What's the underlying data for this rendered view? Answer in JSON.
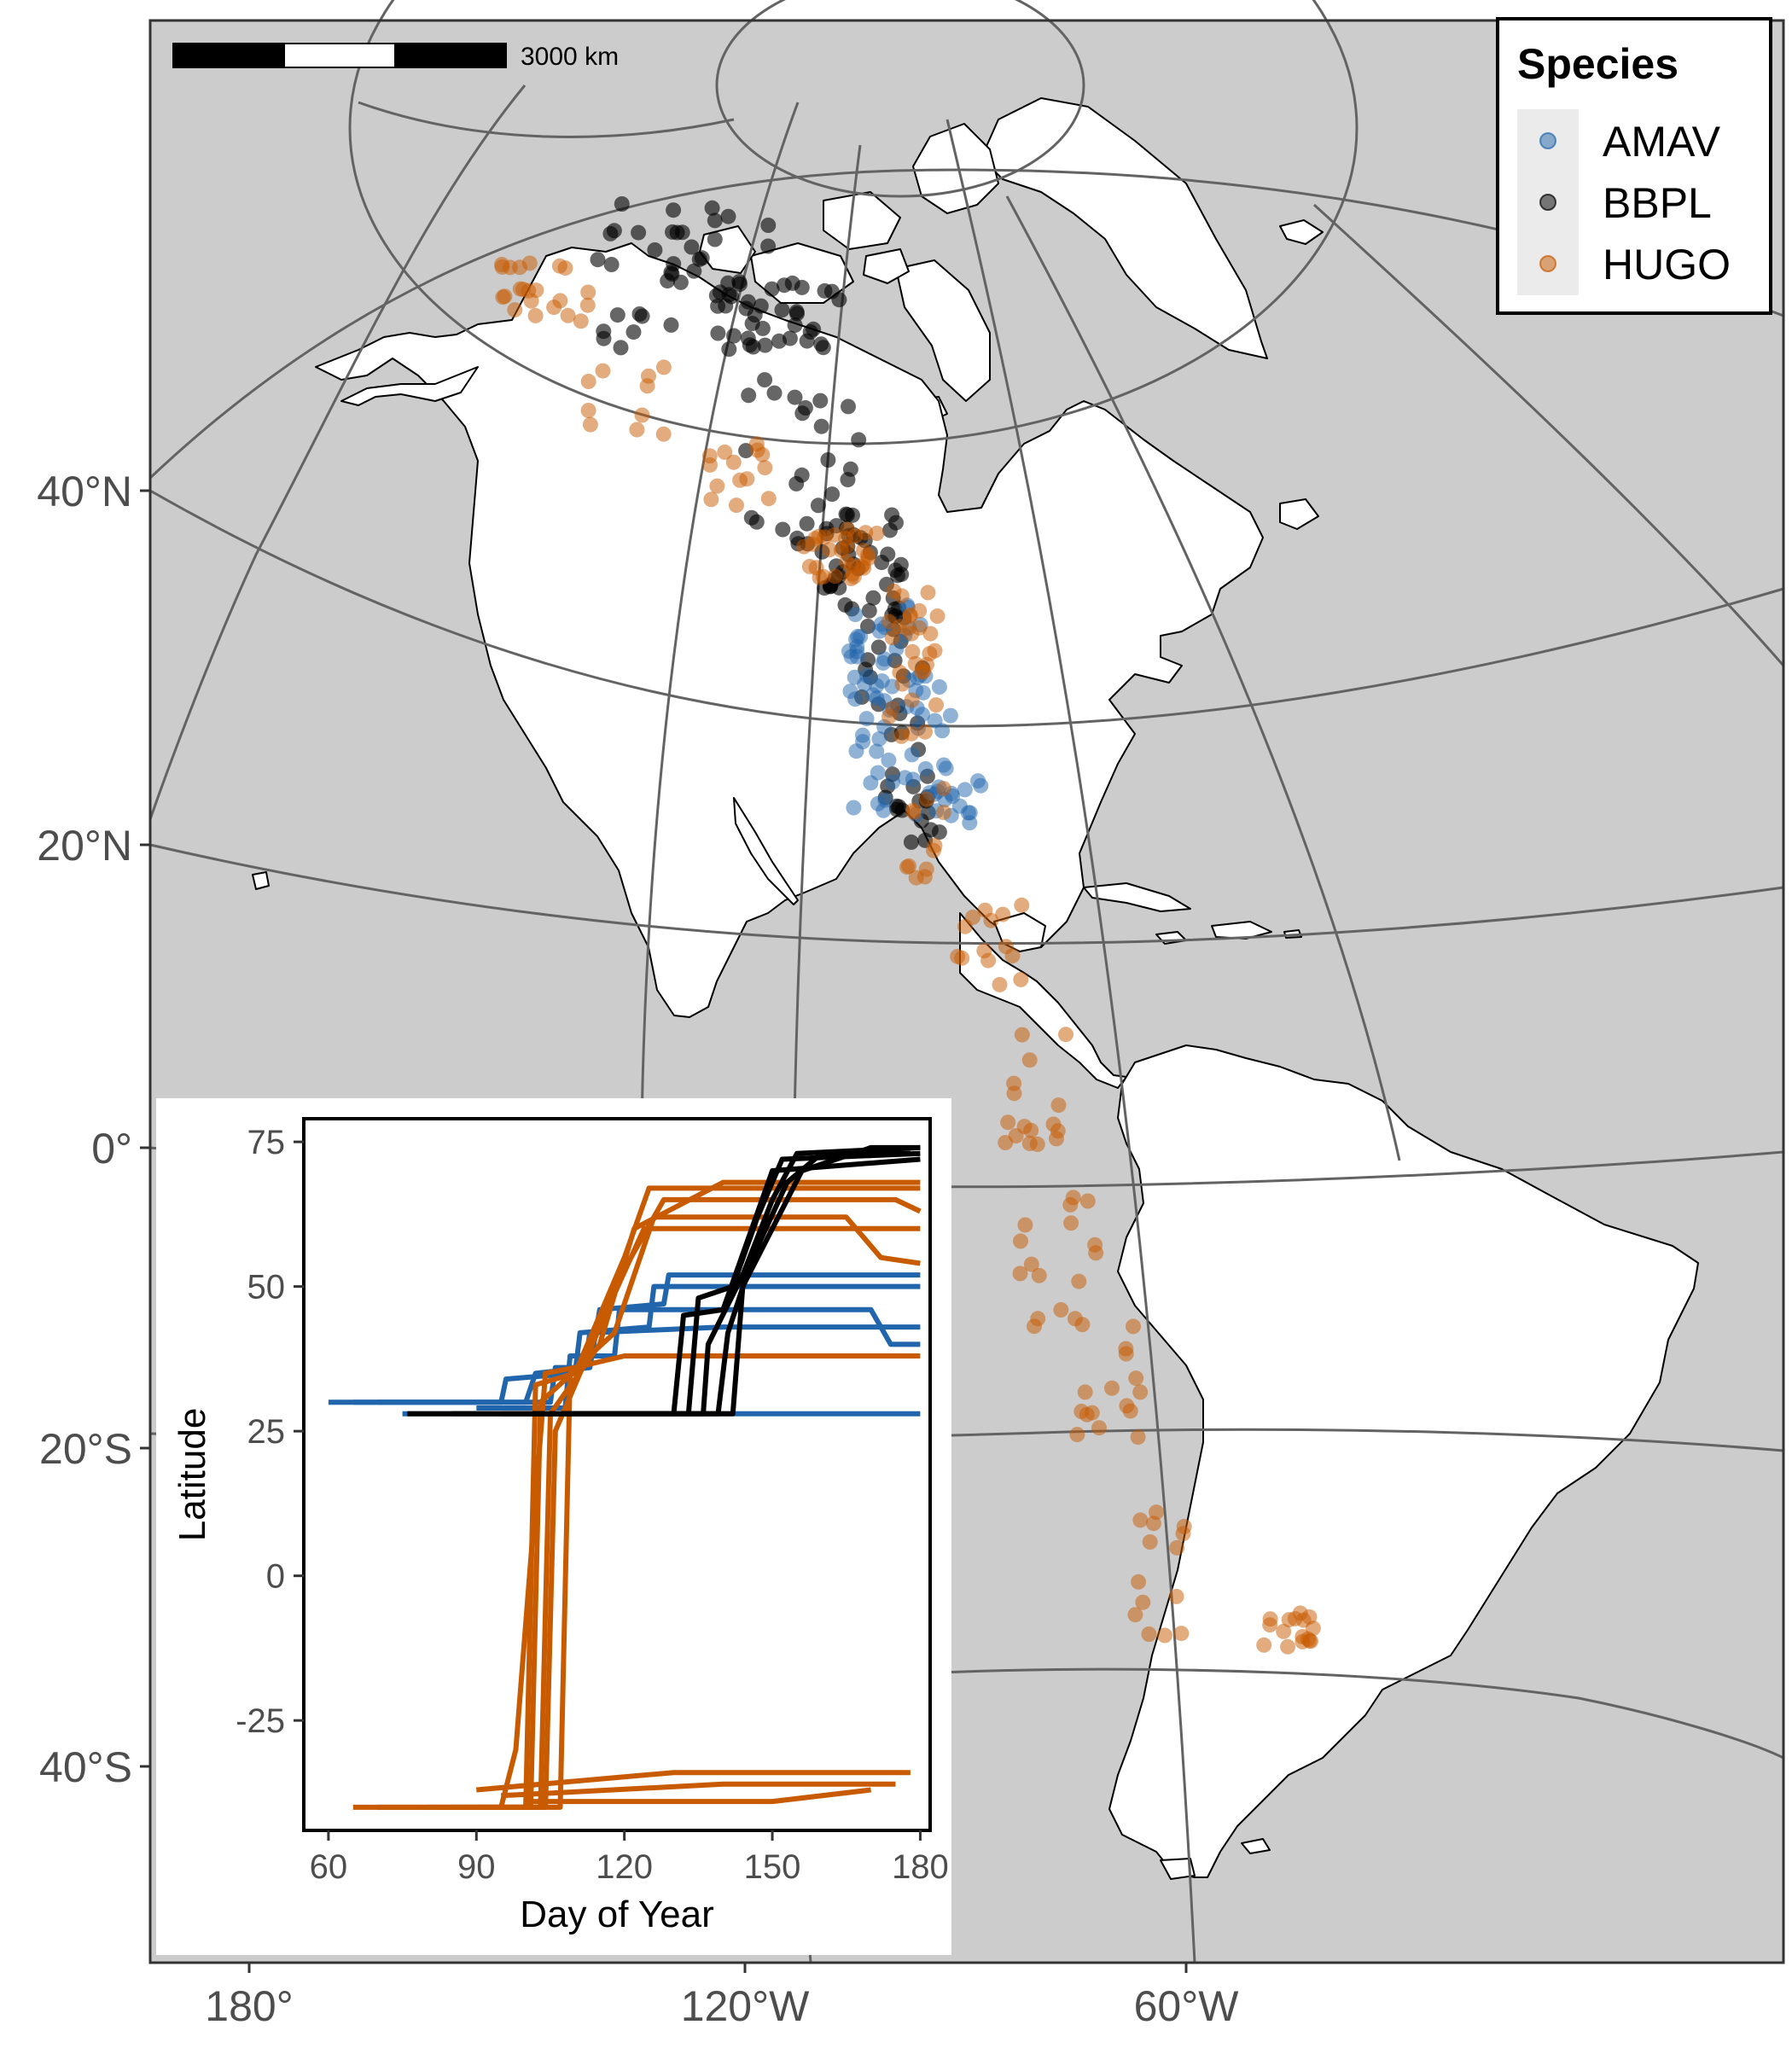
{
  "map": {
    "scale_bar_label": "3000 km",
    "ocean_color": "#cccccc",
    "land_color": "#ffffff",
    "graticule_color": "#636363",
    "lat_ticks": [
      {
        "label": "40°N",
        "lat": 40
      },
      {
        "label": "20°N",
        "lat": 20
      },
      {
        "label": "0°",
        "lat": 0
      },
      {
        "label": "20°S",
        "lat": -20
      },
      {
        "label": "40°S",
        "lat": -40
      }
    ],
    "lon_ticks": [
      {
        "label": "180°",
        "lon": -180
      },
      {
        "label": "120°W",
        "lon": -120
      },
      {
        "label": "60°W",
        "lon": -60
      }
    ]
  },
  "legend": {
    "title": "Species",
    "items": [
      {
        "label": "AMAV",
        "color": "#2166ac"
      },
      {
        "label": "BBPL",
        "color": "#000000"
      },
      {
        "label": "HUGO",
        "color": "#c85a00"
      }
    ]
  },
  "chart_data": {
    "type": "line",
    "xlabel": "Day of Year",
    "ylabel": "Latitude",
    "xlim": [
      55,
      182
    ],
    "ylim": [
      -44,
      79
    ],
    "x_ticks": [
      60,
      90,
      120,
      150,
      180
    ],
    "y_ticks": [
      75,
      50,
      25,
      0,
      -25
    ],
    "series": [
      {
        "name": "AMAV",
        "color": "#2166ac",
        "tracks": [
          [
            [
              60,
              30
            ],
            [
              95,
              30
            ],
            [
              96,
              34
            ],
            [
              110,
              35
            ],
            [
              111,
              42
            ],
            [
              125,
              43
            ],
            [
              126,
              50
            ],
            [
              160,
              50
            ],
            [
              180,
              50
            ]
          ],
          [
            [
              65,
              30
            ],
            [
              100,
              30
            ],
            [
              102,
              35
            ],
            [
              113,
              36
            ],
            [
              115,
              46
            ],
            [
              128,
              47
            ],
            [
              129,
              52
            ],
            [
              155,
              52
            ],
            [
              180,
              52
            ]
          ],
          [
            [
              70,
              30
            ],
            [
              105,
              30
            ],
            [
              106,
              36
            ],
            [
              112,
              36
            ],
            [
              113,
              42
            ],
            [
              140,
              43
            ],
            [
              175,
              43
            ],
            [
              180,
              43
            ]
          ],
          [
            [
              90,
              29
            ],
            [
              108,
              29
            ],
            [
              109,
              38
            ],
            [
              118,
              38
            ],
            [
              119,
              46
            ],
            [
              150,
              46
            ],
            [
              170,
              46
            ],
            [
              174,
              40
            ],
            [
              180,
              40
            ]
          ],
          [
            [
              75,
              28
            ],
            [
              120,
              28
            ],
            [
              150,
              28
            ],
            [
              180,
              28
            ]
          ]
        ]
      },
      {
        "name": "HUGO",
        "color": "#c85a00",
        "tracks": [
          [
            [
              65,
              -40
            ],
            [
              100,
              -40
            ],
            [
              102,
              33
            ],
            [
              110,
              35
            ],
            [
              120,
              55
            ],
            [
              125,
              67
            ],
            [
              150,
              67
            ],
            [
              180,
              67
            ]
          ],
          [
            [
              70,
              -40
            ],
            [
              103,
              -40
            ],
            [
              105,
              28
            ],
            [
              115,
              40
            ],
            [
              122,
              60
            ],
            [
              140,
              68
            ],
            [
              180,
              68
            ]
          ],
          [
            [
              80,
              -40
            ],
            [
              101,
              -40
            ],
            [
              103,
              30
            ],
            [
              112,
              37
            ],
            [
              118,
              50
            ],
            [
              128,
              65
            ],
            [
              175,
              65
            ],
            [
              180,
              63
            ]
          ],
          [
            [
              85,
              -40
            ],
            [
              104,
              -40
            ],
            [
              106,
              25
            ],
            [
              116,
              45
            ],
            [
              124,
              60
            ],
            [
              160,
              60
            ],
            [
              180,
              60
            ]
          ],
          [
            [
              90,
              -40
            ],
            [
              107,
              -40
            ],
            [
              109,
              35
            ],
            [
              118,
              42
            ],
            [
              126,
              62
            ],
            [
              165,
              62
            ],
            [
              172,
              55
            ],
            [
              180,
              54
            ]
          ],
          [
            [
              95,
              -40
            ],
            [
              98,
              -30
            ],
            [
              104,
              35
            ],
            [
              110,
              36
            ],
            [
              120,
              38
            ],
            [
              160,
              38
            ],
            [
              180,
              38
            ]
          ],
          [
            [
              90,
              -37
            ],
            [
              130,
              -34
            ],
            [
              178,
              -34
            ]
          ],
          [
            [
              95,
              -38
            ],
            [
              140,
              -36
            ],
            [
              175,
              -36
            ]
          ],
          [
            [
              100,
              -39
            ],
            [
              150,
              -39
            ],
            [
              170,
              -37
            ]
          ]
        ]
      },
      {
        "name": "BBPL",
        "color": "#000000",
        "tracks": [
          [
            [
              76,
              28
            ],
            [
              130,
              28
            ],
            [
              132,
              45
            ],
            [
              140,
              46
            ],
            [
              145,
              58
            ],
            [
              150,
              70
            ],
            [
              180,
              72
            ]
          ],
          [
            [
              85,
              28
            ],
            [
              133,
              28
            ],
            [
              135,
              48
            ],
            [
              142,
              50
            ],
            [
              147,
              62
            ],
            [
              152,
              72
            ],
            [
              180,
              73
            ]
          ],
          [
            [
              95,
              28
            ],
            [
              136,
              28
            ],
            [
              137,
              40
            ],
            [
              144,
              52
            ],
            [
              150,
              65
            ],
            [
              155,
              73
            ],
            [
              180,
              74
            ]
          ],
          [
            [
              100,
              28
            ],
            [
              139,
              28
            ],
            [
              141,
              42
            ],
            [
              146,
              55
            ],
            [
              153,
              68
            ],
            [
              160,
              73
            ],
            [
              178,
              73
            ]
          ],
          [
            [
              110,
              28
            ],
            [
              142,
              28
            ],
            [
              144,
              50
            ],
            [
              150,
              60
            ],
            [
              156,
              70
            ],
            [
              170,
              74
            ],
            [
              180,
              74
            ]
          ]
        ]
      }
    ]
  }
}
